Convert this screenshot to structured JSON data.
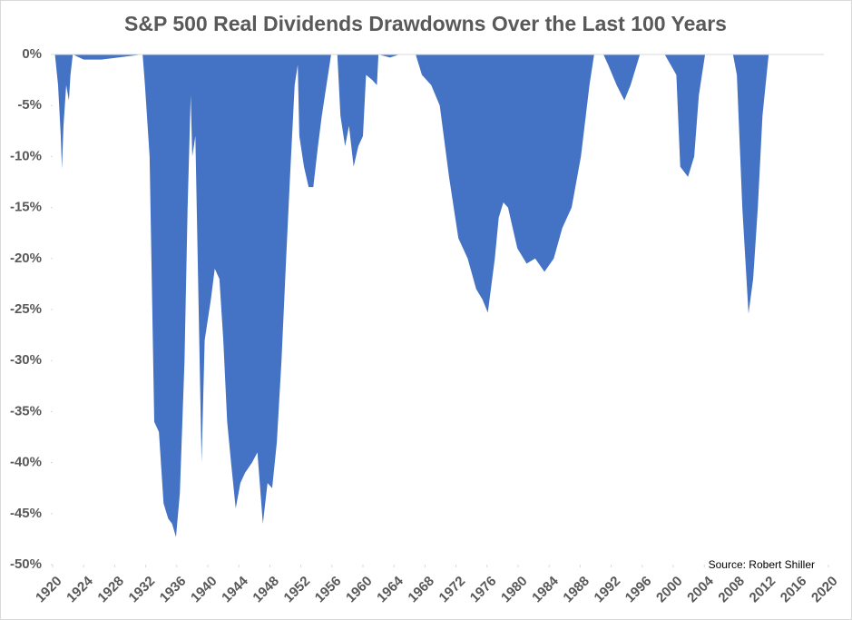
{
  "chart_data": {
    "type": "area",
    "title": "S&P 500 Real Dividends Drawdowns Over the Last 100 Years",
    "source": "Source: Robert Shiller",
    "color": "#4472c4",
    "x": [
      1920.3,
      1920.7,
      1921.05,
      1921.2,
      1921.4,
      1921.75,
      1922.1,
      1922.3,
      1922.6,
      1924.0,
      1924.9,
      1926.3,
      1931.6,
      1931.9,
      1932.5,
      1933.1,
      1933.7,
      1934.3,
      1934.9,
      1935.4,
      1935.9,
      1936.4,
      1937.0,
      1937.4,
      1937.8,
      1938.0,
      1938.4,
      1938.7,
      1939.2,
      1939.6,
      1940.4,
      1940.9,
      1941.5,
      1942.0,
      1942.5,
      1943.0,
      1943.6,
      1944.2,
      1944.8,
      1945.7,
      1946.4,
      1947.1,
      1947.7,
      1948.3,
      1948.9,
      1949.5,
      1950.1,
      1950.6,
      1951.2,
      1951.6,
      1951.8,
      1952.4,
      1953.0,
      1953.6,
      1954.2,
      1954.7,
      1955.3,
      1955.9,
      1956.7,
      1957.1,
      1957.7,
      1958.2,
      1958.8,
      1959.4,
      1960.0,
      1960.4,
      1961.2,
      1961.8,
      1962.0,
      1963.5,
      1964.7,
      1966.8,
      1967.6,
      1968.8,
      1969.9,
      1971.1,
      1972.3,
      1973.5,
      1974.6,
      1975.4,
      1976.1,
      1977.0,
      1977.5,
      1978.1,
      1978.7,
      1979.9,
      1981.1,
      1982.2,
      1983.4,
      1984.6,
      1985.7,
      1986.9,
      1988.1,
      1989.2,
      1989.8,
      1991.0,
      1991.6,
      1992.7,
      1993.7,
      1994.5,
      1995.7,
      1998.9,
      2000.4,
      2000.9,
      2001.9,
      2002.7,
      2003.3,
      2004.1,
      2007.7,
      2008.2,
      2008.9,
      2009.7,
      2010.3,
      2010.9,
      2011.5,
      2012.3,
      2019.4
    ],
    "values": [
      0,
      -3,
      -8,
      -11.2,
      -7,
      -3,
      -4.5,
      -2,
      0,
      -0.5,
      -0.5,
      -0.5,
      0,
      -3,
      -10,
      -36,
      -37,
      -44,
      -45.5,
      -46,
      -47.3,
      -43,
      -30,
      -15,
      -4,
      -10,
      -8,
      -20,
      -40,
      -28,
      -24,
      -21,
      -22,
      -28,
      -36,
      -40,
      -44.5,
      -42,
      -41,
      -40,
      -39,
      -46,
      -42,
      -42.5,
      -38,
      -30,
      -20,
      -12,
      -3,
      -1,
      -8,
      -11,
      -13,
      -13,
      -9,
      -6,
      -3,
      0,
      0,
      -6,
      -9,
      -7,
      -11,
      -9,
      -8,
      -2,
      -2.5,
      -3,
      0,
      -0.3,
      0,
      0,
      -2,
      -3,
      -5,
      -12,
      -18,
      -20,
      -23,
      -24,
      -25.3,
      -20,
      -16,
      -14.5,
      -15,
      -19,
      -20.5,
      -20,
      -21.3,
      -20,
      -17,
      -15,
      -10,
      -3,
      0,
      0,
      -1,
      -3,
      -4.5,
      -3,
      0,
      0,
      -2,
      -11,
      -12,
      -10,
      -4,
      0,
      0,
      -2,
      -15,
      -25.4,
      -22,
      -15,
      -6,
      0,
      0
    ],
    "xlim": [
      1920,
      2020
    ],
    "xticks": [
      1920,
      1924,
      1928,
      1932,
      1936,
      1940,
      1944,
      1948,
      1952,
      1956,
      1960,
      1964,
      1968,
      1972,
      1976,
      1980,
      1984,
      1988,
      1992,
      1996,
      2000,
      2004,
      2008,
      2012,
      2016,
      2020
    ],
    "ylim": [
      -50,
      0
    ],
    "yticks": [
      {
        "value": 0,
        "label": "0%"
      },
      {
        "value": -5,
        "label": "-5%"
      },
      {
        "value": -10,
        "label": "-10%"
      },
      {
        "value": -15,
        "label": "-15%"
      },
      {
        "value": -20,
        "label": "-20%"
      },
      {
        "value": -25,
        "label": "-25%"
      },
      {
        "value": -30,
        "label": "-30%"
      },
      {
        "value": -35,
        "label": "-35%"
      },
      {
        "value": -40,
        "label": "-40%"
      },
      {
        "value": -45,
        "label": "-45%"
      },
      {
        "value": -50,
        "label": "-50%"
      }
    ]
  }
}
